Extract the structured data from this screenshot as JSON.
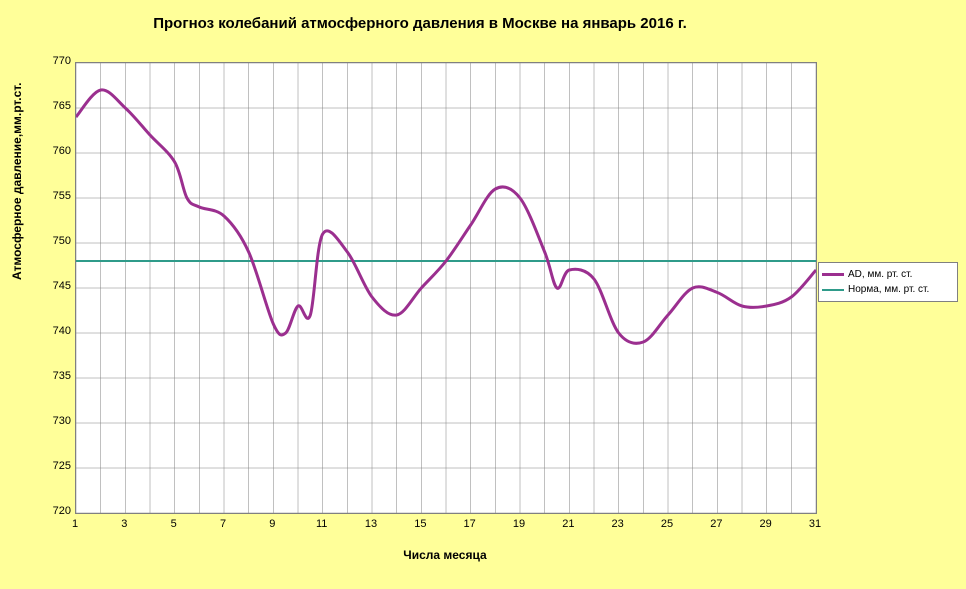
{
  "chart": {
    "type": "line",
    "title": "Прогноз колебаний атмосферного давления в Москве на январь 2016 г.",
    "ylabel": "Атмосферное давление,мм.рт.ст.",
    "xlabel": "Числа месяца",
    "background_color": "#ffff99",
    "plot_bg": "#ffffff",
    "grid_color": "#808080",
    "title_fontsize": 15,
    "label_fontsize": 12,
    "tick_fontsize": 11,
    "ylim": [
      720,
      770
    ],
    "ytick_step": 5,
    "xlim": [
      1,
      31
    ],
    "xtick_step": 2,
    "x_values": [
      1,
      2,
      3,
      4,
      5,
      6,
      7,
      8,
      9,
      10,
      11,
      12,
      13,
      14,
      15,
      16,
      17,
      18,
      19,
      20,
      21,
      22,
      23,
      24,
      25,
      26,
      27,
      28,
      29,
      30,
      31
    ],
    "series": [
      {
        "name": "AD, мм. рт. ст.",
        "color": "#9b2f8f",
        "line_width": 3,
        "values": [
          764,
          767,
          765,
          762,
          759,
          755,
          754,
          753,
          749,
          741,
          740,
          743,
          742,
          751,
          749,
          744,
          742,
          745,
          748,
          752,
          756,
          755,
          749,
          745,
          747,
          746,
          740,
          739,
          742,
          745,
          744.5,
          743,
          743,
          744,
          747
        ]
      },
      {
        "name": "Норма, мм. рт. ст.",
        "color": "#2f9b8a",
        "line_width": 2,
        "constant_value": 748
      }
    ],
    "ad_detailed_x": [
      1,
      2,
      3,
      4,
      5,
      5.5,
      6,
      7,
      8,
      9,
      9.5,
      10,
      10.5,
      11,
      12,
      13,
      14,
      15,
      16,
      17,
      18,
      19,
      20,
      20.5,
      21,
      22,
      23,
      24,
      25,
      26,
      27,
      28,
      29,
      30,
      31
    ],
    "legend_position": "right"
  }
}
